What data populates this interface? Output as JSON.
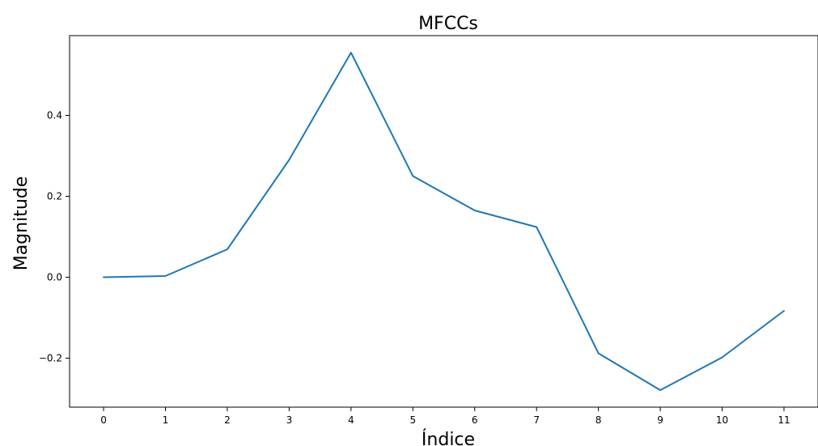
{
  "chart_data": {
    "type": "line",
    "title": "MFCCs",
    "xlabel": "Índice",
    "ylabel": "Magnitude",
    "x": [
      0,
      1,
      2,
      3,
      4,
      5,
      6,
      7,
      8,
      9,
      10,
      11
    ],
    "series": [
      {
        "values": [
          0.0,
          0.003,
          0.069,
          0.29,
          0.555,
          0.25,
          0.165,
          0.124,
          -0.188,
          -0.279,
          -0.198,
          -0.083
        ],
        "color": "#1f77b4"
      }
    ],
    "x_ticks": [
      "0",
      "1",
      "2",
      "3",
      "4",
      "5",
      "6",
      "7",
      "8",
      "9",
      "10",
      "11"
    ],
    "y_ticks": [
      {
        "value": -0.2,
        "label": "−0.2"
      },
      {
        "value": 0.0,
        "label": "0.0"
      },
      {
        "value": 0.2,
        "label": "0.2"
      },
      {
        "value": 0.4,
        "label": "0.4"
      }
    ],
    "xlim": [
      -0.55,
      11.55
    ],
    "ylim": [
      -0.321,
      0.597
    ],
    "grid": false
  }
}
